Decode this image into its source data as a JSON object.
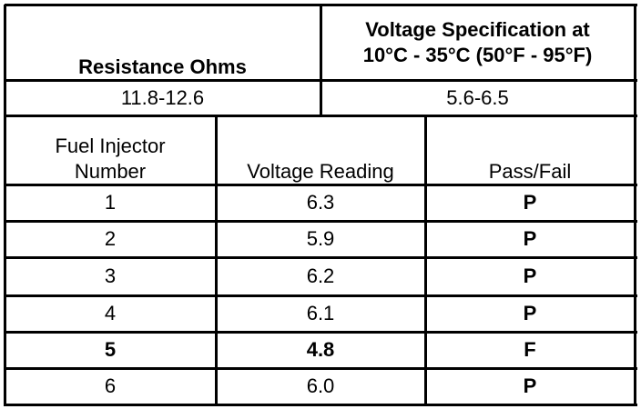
{
  "header": {
    "resistance_label": "Resistance Ohms",
    "voltage_spec_label": [
      "Voltage Specification at",
      "10°C - 35°C (50°F - 95°F)"
    ],
    "resistance_value": "11.8-12.6",
    "voltage_spec_value": "5.6-6.5"
  },
  "table": {
    "columns": [
      [
        "Fuel Injector",
        "Number"
      ],
      [
        "Voltage Reading"
      ],
      [
        "Pass/Fail"
      ]
    ],
    "rows": [
      [
        "1",
        "6.3",
        "P"
      ],
      [
        "2",
        "5.9",
        "P"
      ],
      [
        "3",
        "6.2",
        "P"
      ],
      [
        "4",
        "6.1",
        "P"
      ],
      [
        "5",
        "4.8",
        "F"
      ],
      [
        "6",
        "6.0",
        "P"
      ]
    ]
  }
}
